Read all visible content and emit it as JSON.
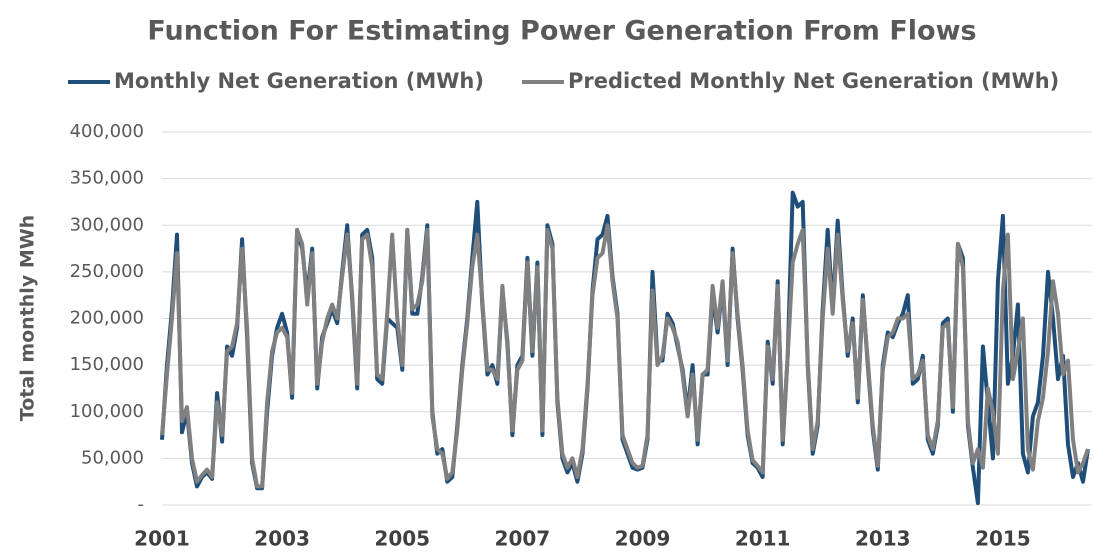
{
  "chart_data": {
    "type": "line",
    "title": "Function For Estimating Power Generation From Flows",
    "y_label": "Total monthly MWh",
    "categories": [
      "2001",
      null,
      null,
      null,
      null,
      null,
      null,
      null,
      null,
      null,
      null,
      null,
      null,
      null,
      null,
      null,
      null,
      null,
      null,
      null,
      null,
      null,
      null,
      null,
      "2003",
      null,
      null,
      null,
      null,
      null,
      null,
      null,
      null,
      null,
      null,
      null,
      null,
      null,
      null,
      null,
      null,
      null,
      null,
      null,
      null,
      null,
      null,
      null,
      "2005",
      null,
      null,
      null,
      null,
      null,
      null,
      null,
      null,
      null,
      null,
      null,
      null,
      null,
      null,
      null,
      null,
      null,
      null,
      null,
      null,
      null,
      null,
      null,
      "2007",
      null,
      null,
      null,
      null,
      null,
      null,
      null,
      null,
      null,
      null,
      null,
      null,
      null,
      null,
      null,
      null,
      null,
      null,
      null,
      null,
      null,
      null,
      null,
      "2009",
      null,
      null,
      null,
      null,
      null,
      null,
      null,
      null,
      null,
      null,
      null,
      null,
      null,
      null,
      null,
      null,
      null,
      null,
      null,
      null,
      null,
      null,
      null,
      "2011",
      null,
      null,
      null,
      null,
      null,
      null,
      null,
      null,
      null,
      null,
      null,
      null,
      null,
      null,
      null,
      null,
      null,
      null,
      null,
      null,
      null,
      null,
      null,
      "2013",
      null,
      null,
      null,
      null,
      null,
      null,
      null,
      null,
      null,
      null,
      null,
      null,
      null,
      null,
      null,
      null,
      null,
      null,
      null,
      null,
      null,
      null,
      null,
      "2015",
      null,
      null,
      null,
      null,
      null,
      null,
      null,
      null,
      null,
      null,
      null,
      null,
      null,
      null,
      null,
      null,
      null
    ],
    "series": [
      {
        "name": "Monthly Net Generation (MWh)",
        "color": "#1f4e79",
        "values": [
          70000,
          150000,
          210000,
          290000,
          78000,
          100000,
          45000,
          20000,
          30000,
          35000,
          28000,
          120000,
          68000,
          170000,
          160000,
          190000,
          285000,
          180000,
          45000,
          18000,
          18000,
          100000,
          160000,
          190000,
          205000,
          185000,
          115000,
          295000,
          275000,
          225000,
          275000,
          125000,
          180000,
          195000,
          210000,
          195000,
          250000,
          300000,
          220000,
          125000,
          290000,
          295000,
          265000,
          135000,
          130000,
          200000,
          195000,
          190000,
          145000,
          295000,
          205000,
          205000,
          245000,
          300000,
          100000,
          55000,
          60000,
          25000,
          30000,
          85000,
          150000,
          200000,
          265000,
          325000,
          215000,
          140000,
          150000,
          130000,
          230000,
          175000,
          75000,
          150000,
          160000,
          265000,
          160000,
          260000,
          75000,
          300000,
          280000,
          110000,
          50000,
          35000,
          45000,
          25000,
          55000,
          125000,
          230000,
          285000,
          290000,
          310000,
          245000,
          205000,
          70000,
          55000,
          40000,
          38000,
          40000,
          70000,
          250000,
          155000,
          155000,
          205000,
          195000,
          170000,
          145000,
          100000,
          150000,
          65000,
          140000,
          140000,
          225000,
          185000,
          235000,
          150000,
          275000,
          200000,
          145000,
          75000,
          45000,
          40000,
          30000,
          175000,
          130000,
          240000,
          65000,
          160000,
          335000,
          320000,
          325000,
          150000,
          55000,
          85000,
          210000,
          295000,
          210000,
          305000,
          225000,
          160000,
          200000,
          110000,
          225000,
          150000,
          80000,
          38000,
          150000,
          185000,
          180000,
          195000,
          205000,
          225000,
          130000,
          135000,
          160000,
          70000,
          55000,
          85000,
          195000,
          200000,
          100000,
          280000,
          265000,
          85000,
          40000,
          2000,
          170000,
          110000,
          50000,
          240000,
          310000,
          130000,
          160000,
          215000,
          55000,
          35000,
          95000,
          110000,
          160000,
          250000,
          200000,
          135000,
          160000,
          65000,
          30000,
          45000,
          25000,
          60000
        ]
      },
      {
        "name": "Predicted Monthly Net Generation (MWh)",
        "color": "#808080",
        "values": [
          75000,
          140000,
          200000,
          270000,
          90000,
          105000,
          50000,
          25000,
          32000,
          38000,
          30000,
          110000,
          75000,
          165000,
          170000,
          195000,
          275000,
          190000,
          50000,
          20000,
          20000,
          110000,
          165000,
          185000,
          190000,
          180000,
          120000,
          295000,
          280000,
          215000,
          270000,
          130000,
          175000,
          200000,
          215000,
          200000,
          245000,
          290000,
          225000,
          130000,
          285000,
          290000,
          255000,
          140000,
          135000,
          205000,
          290000,
          200000,
          150000,
          295000,
          210000,
          215000,
          240000,
          295000,
          95000,
          60000,
          55000,
          28000,
          35000,
          80000,
          145000,
          195000,
          255000,
          290000,
          220000,
          145000,
          145000,
          135000,
          235000,
          170000,
          80000,
          145000,
          155000,
          260000,
          165000,
          255000,
          80000,
          295000,
          275000,
          115000,
          55000,
          40000,
          50000,
          30000,
          60000,
          130000,
          225000,
          265000,
          270000,
          300000,
          240000,
          200000,
          75000,
          60000,
          45000,
          40000,
          42000,
          75000,
          230000,
          150000,
          160000,
          200000,
          190000,
          175000,
          140000,
          95000,
          140000,
          70000,
          140000,
          145000,
          235000,
          190000,
          240000,
          155000,
          270000,
          205000,
          150000,
          80000,
          48000,
          42000,
          35000,
          170000,
          135000,
          235000,
          70000,
          160000,
          260000,
          280000,
          295000,
          155000,
          60000,
          90000,
          200000,
          275000,
          205000,
          290000,
          220000,
          165000,
          195000,
          115000,
          220000,
          155000,
          85000,
          42000,
          145000,
          180000,
          185000,
          200000,
          200000,
          205000,
          135000,
          140000,
          155000,
          75000,
          60000,
          90000,
          190000,
          195000,
          105000,
          280000,
          255000,
          90000,
          45000,
          60000,
          40000,
          125000,
          100000,
          55000,
          230000,
          290000,
          135000,
          165000,
          200000,
          60000,
          38000,
          90000,
          115000,
          165000,
          240000,
          205000,
          140000,
          155000,
          70000,
          35000,
          45000,
          60000
        ]
      }
    ],
    "ylim": [
      0,
      400000
    ],
    "yticks": [
      {
        "value": 0,
        "label": "-"
      },
      {
        "value": 50000,
        "label": "50,000"
      },
      {
        "value": 100000,
        "label": "100,000"
      },
      {
        "value": 150000,
        "label": "150,000"
      },
      {
        "value": 200000,
        "label": "200,000"
      },
      {
        "value": 250000,
        "label": "250,000"
      },
      {
        "value": 300000,
        "label": "300,000"
      },
      {
        "value": 350000,
        "label": "350,000"
      },
      {
        "value": 400000,
        "label": "400,000"
      }
    ],
    "grid": true,
    "legend": "top"
  }
}
